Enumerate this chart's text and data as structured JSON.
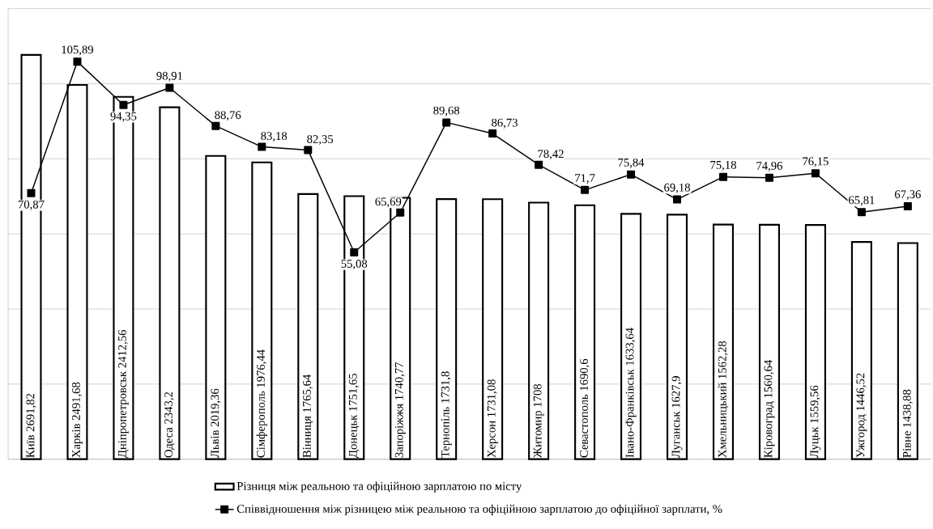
{
  "chart_data": {
    "type": "bar",
    "categories": [
      "Київ",
      "Харків",
      "Дніпропетровськ",
      "Одеса",
      "Львів",
      "Сімферополь",
      "Вінниця",
      "Донецьк",
      "Запоріжжя",
      "Тернопіль",
      "Херсон",
      "Житомир",
      "Севастополь",
      "Івано-Франківськ",
      "Луганськ",
      "Хмельницький",
      "Кіровоград",
      "Луцьк",
      "Ужгород",
      "Рівне"
    ],
    "series": [
      {
        "name": "Різниця між реальною та офіційною зарплатою по місту",
        "color": "#ffffff",
        "values": [
          2691.82,
          2491.68,
          2412.56,
          2343.2,
          2019.36,
          1976.44,
          1765.64,
          1751.65,
          1740.77,
          1731.8,
          1731.08,
          1708,
          1690.6,
          1633.64,
          1627.9,
          1562.28,
          1560.64,
          1559.56,
          1446.52,
          1438.88
        ],
        "value_labels": [
          "2691,82",
          "2491,68",
          "2412,56",
          "2343,2",
          "2019,36",
          "1976,44",
          "1765,64",
          "1751,65",
          "1740,77",
          "1731,8",
          "1731,08",
          "1708",
          "1690,6",
          "1633,64",
          "1627,9",
          "1562,28",
          "1560,64",
          "1559,56",
          "1446,52",
          "1438,88"
        ]
      },
      {
        "name": "Співвідношення між різницею між реальною та офіційною зарплатою до офіційної зарплати, %",
        "type": "line",
        "axis": "y2",
        "color": "#000000",
        "values": [
          70.87,
          105.89,
          94.35,
          98.91,
          88.76,
          83.18,
          82.35,
          55.08,
          65.69,
          89.68,
          86.73,
          78.42,
          71.7,
          75.84,
          69.18,
          75.18,
          74.96,
          76.15,
          65.81,
          67.36
        ],
        "value_labels": [
          "70,87",
          "105,89",
          "94,35",
          "98,91",
          "88,76",
          "83,18",
          "82,35",
          "55,08",
          "65,69",
          "89,68",
          "86,73",
          "78,42",
          "71,7",
          "75,84",
          "69,18",
          "75,18",
          "74,96",
          "76,15",
          "65,81",
          "67,36"
        ]
      }
    ],
    "ylim": [
      0,
      3000
    ],
    "yticks": [
      {
        "value": 0,
        "label": null
      },
      {
        "value": 500,
        "label": null
      },
      {
        "value": 1000,
        "label": null
      },
      {
        "value": 1500,
        "label": null
      },
      {
        "value": 2000,
        "label": null
      },
      {
        "value": 2500,
        "label": null
      },
      {
        "value": 3000,
        "label": null
      }
    ],
    "y2lim": [
      0,
      120
    ],
    "grid": true,
    "legend": "bottom",
    "marker": "square",
    "line_style": "solid"
  }
}
